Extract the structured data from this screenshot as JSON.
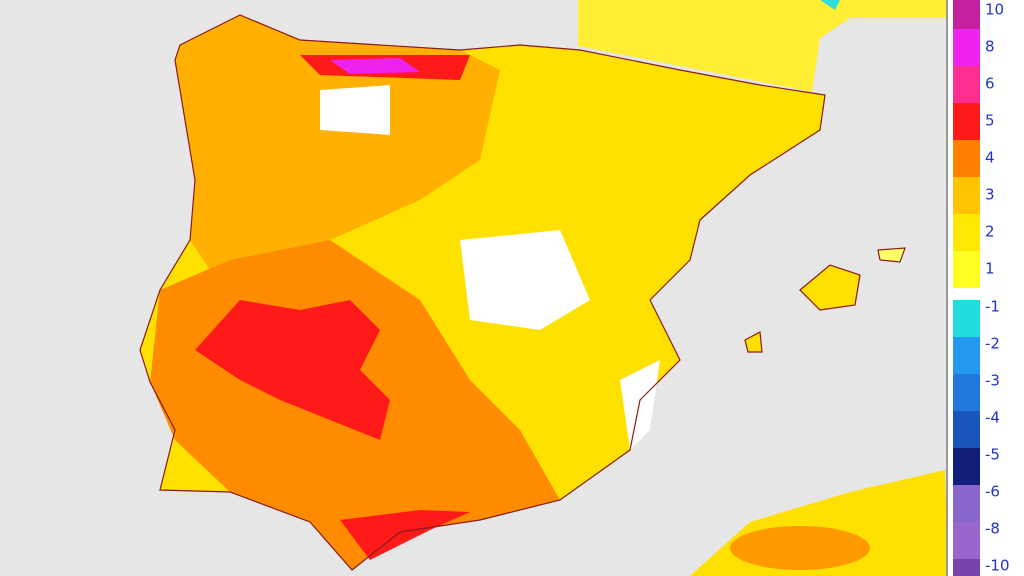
{
  "legend": {
    "items": [
      {
        "label": "10",
        "color": "#c4219e"
      },
      {
        "label": "8",
        "color": "#ee22ee"
      },
      {
        "label": "6",
        "color": "#ff2d8f"
      },
      {
        "label": "5",
        "color": "#ff1a1a"
      },
      {
        "label": "4",
        "color": "#ff7f00"
      },
      {
        "label": "3",
        "color": "#ffc400"
      },
      {
        "label": "2",
        "color": "#ffe800"
      },
      {
        "label": "1",
        "color": "#ffff22"
      },
      {
        "label": "-1",
        "color": "#22dddd"
      },
      {
        "label": "-2",
        "color": "#2299ee"
      },
      {
        "label": "-3",
        "color": "#2277dd"
      },
      {
        "label": "-4",
        "color": "#1a55bb"
      },
      {
        "label": "-5",
        "color": "#121f7a"
      },
      {
        "label": "-6",
        "color": "#8866cc"
      },
      {
        "label": "-8",
        "color": "#9966cc"
      },
      {
        "label": "-10",
        "color": "#7744aa"
      }
    ]
  }
}
